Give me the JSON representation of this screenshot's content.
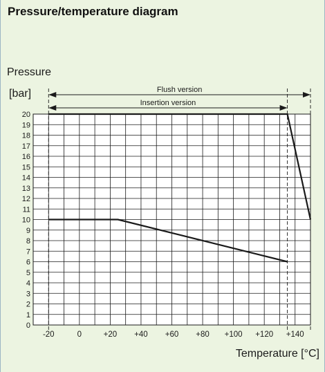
{
  "page": {
    "title": "Pressure/temperature diagram"
  },
  "chart_data": {
    "type": "line",
    "ylabel": "Pressure",
    "yunit": "[bar]",
    "xlabel": "Temperature [°C]",
    "xlim": [
      -30,
      150
    ],
    "ylim": [
      0,
      20
    ],
    "x_tick_labels": [
      "-20",
      "0",
      "+20",
      "+40",
      "+60",
      "+80",
      "+100",
      "+120",
      "+140"
    ],
    "x_tick_values": [
      -20,
      0,
      20,
      40,
      60,
      80,
      100,
      120,
      140
    ],
    "y_ticks": [
      0,
      1,
      2,
      3,
      4,
      5,
      6,
      7,
      8,
      9,
      10,
      11,
      12,
      13,
      14,
      15,
      16,
      17,
      18,
      19,
      20
    ],
    "grid": true,
    "ranges": [
      {
        "label": "Flush version",
        "x_start": -20,
        "x_end": 150
      },
      {
        "label": "Insertion version",
        "x_start": -20,
        "x_end": 135
      }
    ],
    "series": [
      {
        "x": [
          -20,
          135,
          150
        ],
        "y": [
          20,
          20,
          10
        ]
      },
      {
        "x": [
          -20,
          25,
          135
        ],
        "y": [
          10,
          10,
          6
        ]
      }
    ]
  }
}
